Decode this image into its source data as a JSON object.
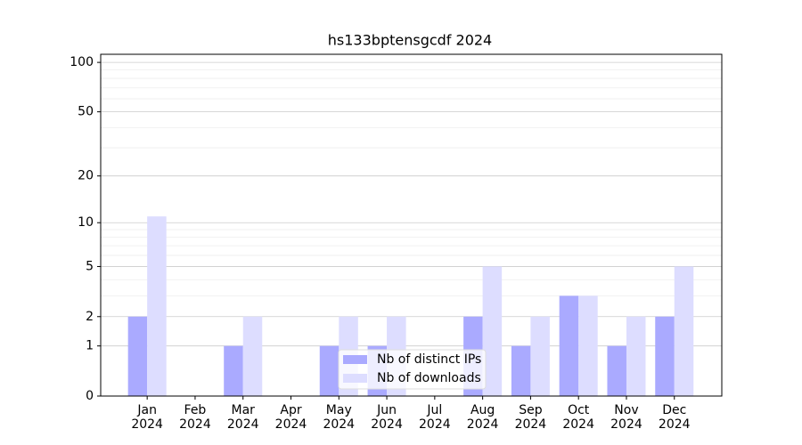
{
  "chart_data": {
    "type": "bar",
    "title": "hs133bptensgcdf 2024",
    "categories": [
      "Jan\n2024",
      "Feb\n2024",
      "Mar\n2024",
      "Apr\n2024",
      "May\n2024",
      "Jun\n2024",
      "Jul\n2024",
      "Aug\n2024",
      "Sep\n2024",
      "Oct\n2024",
      "Nov\n2024",
      "Dec\n2024"
    ],
    "series": [
      {
        "name": "Nb of distinct IPs",
        "color": "#aaaaff",
        "values": [
          2,
          0,
          1,
          0,
          1,
          1,
          0,
          2,
          1,
          3,
          1,
          2
        ]
      },
      {
        "name": "Nb of downloads",
        "color": "#ddddff",
        "values": [
          11,
          0,
          2,
          0,
          2,
          2,
          0,
          5,
          2,
          3,
          2,
          5
        ]
      }
    ],
    "yscale": "log1p",
    "ylim": [
      0,
      112
    ],
    "yticks": [
      0,
      1,
      2,
      5,
      10,
      20,
      50,
      100
    ],
    "yminorticks": [
      3,
      4,
      6,
      7,
      8,
      9,
      30,
      40,
      60,
      70,
      80,
      90
    ],
    "grid": true,
    "legend": "lower center"
  }
}
